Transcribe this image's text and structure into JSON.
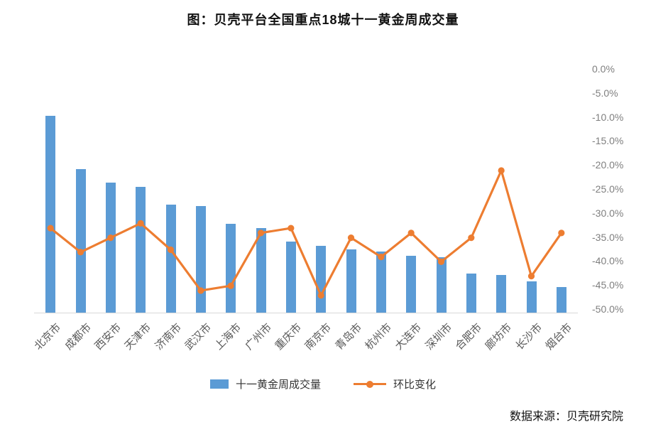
{
  "title": "图：贝壳平台全国重点18城十一黄金周成交量",
  "source": "数据来源：贝壳研究院",
  "legend": {
    "bars_label": "十一黄金周成交量",
    "line_label": "环比变化"
  },
  "colors": {
    "bar": "#5B9BD5",
    "line": "#ED7D31",
    "axis_text": "#7f7f7f",
    "category_text": "#595959"
  },
  "chart_data": {
    "type": "bar",
    "subtype": "bar+line combo",
    "title": "图：贝壳平台全国重点18城十一黄金周成交量",
    "categories": [
      "北京市",
      "成都市",
      "西安市",
      "天津市",
      "济南市",
      "武汉市",
      "上海市",
      "广州市",
      "重庆市",
      "南京市",
      "青岛市",
      "杭州市",
      "大连市",
      "深圳市",
      "合肥市",
      "廊坊市",
      "长沙市",
      "烟台市"
    ],
    "series": [
      {
        "name": "十一黄金周成交量",
        "type": "bar",
        "axis": "left",
        "note": "left value axis is not labeled in the image; values are relative units with tallest bar = 100",
        "values": [
          100,
          73,
          66,
          64,
          55,
          54,
          45,
          43,
          36,
          34,
          32,
          31,
          29,
          28,
          20,
          19,
          16,
          13
        ]
      },
      {
        "name": "环比变化",
        "type": "line",
        "axis": "right",
        "unit": "%",
        "values": [
          -33,
          -38,
          -35,
          -32,
          -37.5,
          -46,
          -45,
          -34,
          -33,
          -47,
          -35,
          -39,
          -34,
          -40,
          -35,
          -21,
          -43,
          -34
        ]
      }
    ],
    "right_axis": {
      "tick_labels": [
        "0.0%",
        "-5.0%",
        "-10.0%",
        "-15.0%",
        "-20.0%",
        "-25.0%",
        "-30.0%",
        "-35.0%",
        "-40.0%",
        "-45.0%",
        "-50.0%"
      ],
      "max": 0,
      "min": -50
    },
    "grid": false,
    "legend_position": "bottom",
    "legend_entries": [
      "十一黄金周成交量",
      "环比变化"
    ]
  }
}
